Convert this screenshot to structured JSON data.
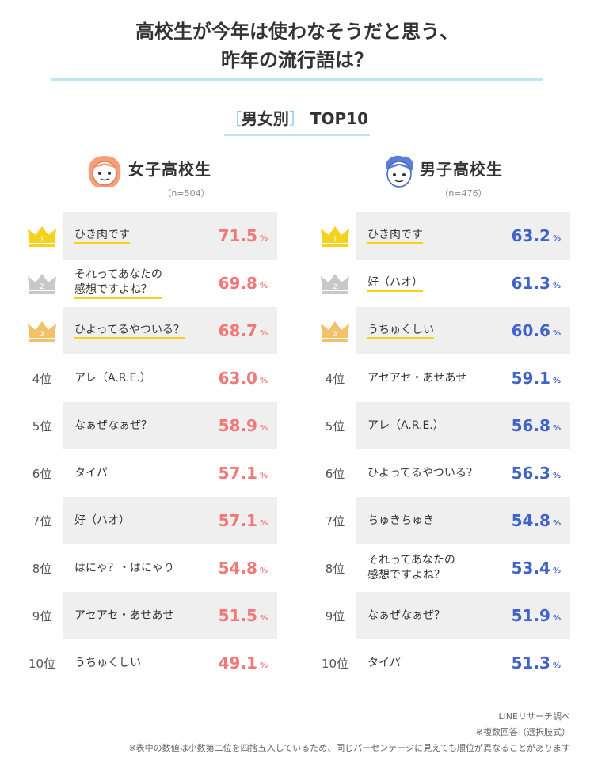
{
  "title": {
    "line1": "高校生が今年は使わなそうだと思う、",
    "line2": "昨年の流行語は？"
  },
  "subtitle": {
    "open": "［",
    "text": "男女別",
    "close": "］",
    "suffix": "TOP10"
  },
  "colors": {
    "female": "#f07878",
    "male": "#3f63c9",
    "gold": "#f4d21e",
    "silver": "#c8c8c8",
    "bronze": "#f2c16a",
    "underline": "#f4d21e",
    "rule": "#bfe6f3"
  },
  "rank_suffix": "位",
  "percent_unit": "%",
  "chart_data": [
    {
      "type": "table",
      "title": "女子高校生",
      "n_label": "（n=504）",
      "rows": [
        {
          "rank": "1",
          "label": "ひき肉です",
          "value": "71.5",
          "medal": "gold"
        },
        {
          "rank": "2",
          "label": "それってあなたの\n感想ですよね？",
          "value": "69.8",
          "medal": "silver"
        },
        {
          "rank": "3",
          "label": "ひよってるやついる？",
          "value": "68.7",
          "medal": "bronze"
        },
        {
          "rank": "4",
          "label": "アレ（A.R.E.）",
          "value": "63.0"
        },
        {
          "rank": "5",
          "label": "なぁぜなぁぜ？",
          "value": "58.9"
        },
        {
          "rank": "6",
          "label": "タイパ",
          "value": "57.1"
        },
        {
          "rank": "7",
          "label": "好（ハオ）",
          "value": "57.1"
        },
        {
          "rank": "8",
          "label": "はにゃ？・はにゃり",
          "value": "54.8"
        },
        {
          "rank": "9",
          "label": "アセアセ・あせあせ",
          "value": "51.5"
        },
        {
          "rank": "10",
          "label": "うちゅくしい",
          "value": "49.1"
        }
      ]
    },
    {
      "type": "table",
      "title": "男子高校生",
      "n_label": "（n=476）",
      "rows": [
        {
          "rank": "1",
          "label": "ひき肉です",
          "value": "63.2",
          "medal": "gold"
        },
        {
          "rank": "2",
          "label": "好（ハオ）",
          "value": "61.3",
          "medal": "silver"
        },
        {
          "rank": "3",
          "label": "うちゅくしい",
          "value": "60.6",
          "medal": "bronze"
        },
        {
          "rank": "4",
          "label": "アセアセ・あせあせ",
          "value": "59.1"
        },
        {
          "rank": "5",
          "label": "アレ（A.R.E.）",
          "value": "56.8"
        },
        {
          "rank": "6",
          "label": "ひよってるやついる？",
          "value": "56.3"
        },
        {
          "rank": "7",
          "label": "ちゅきちゅき",
          "value": "54.8"
        },
        {
          "rank": "8",
          "label": "それってあなたの\n感想ですよね？",
          "value": "53.4"
        },
        {
          "rank": "9",
          "label": "なぁぜなぁぜ？",
          "value": "51.9"
        },
        {
          "rank": "10",
          "label": "タイパ",
          "value": "51.3"
        }
      ]
    }
  ],
  "footer": {
    "source": "LINEリサーチ調べ",
    "multi": "※複数回答（選択肢式）",
    "note": "※表中の数値は小数第二位を四捨五入しているため、同じパーセンテージに見えても順位が異なることがあります"
  }
}
